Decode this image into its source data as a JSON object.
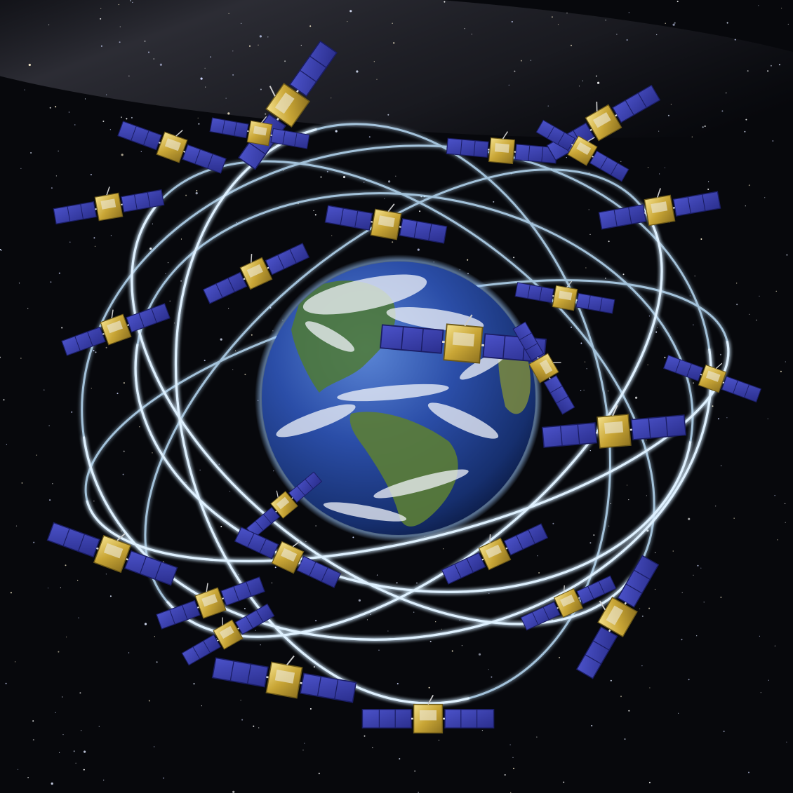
{
  "scene": {
    "subject": "satellite-constellation-orbiting-earth",
    "colors": {
      "space": "#07080c",
      "orbit_glow": "#bfe3ff",
      "panel": "#3a3fae",
      "panel_edge": "#1a1d63",
      "bus_gold": "#d6b640",
      "ocean": "#1f3f8f",
      "land": "#4f7a34",
      "cloud": "#f2f5fa"
    }
  }
}
